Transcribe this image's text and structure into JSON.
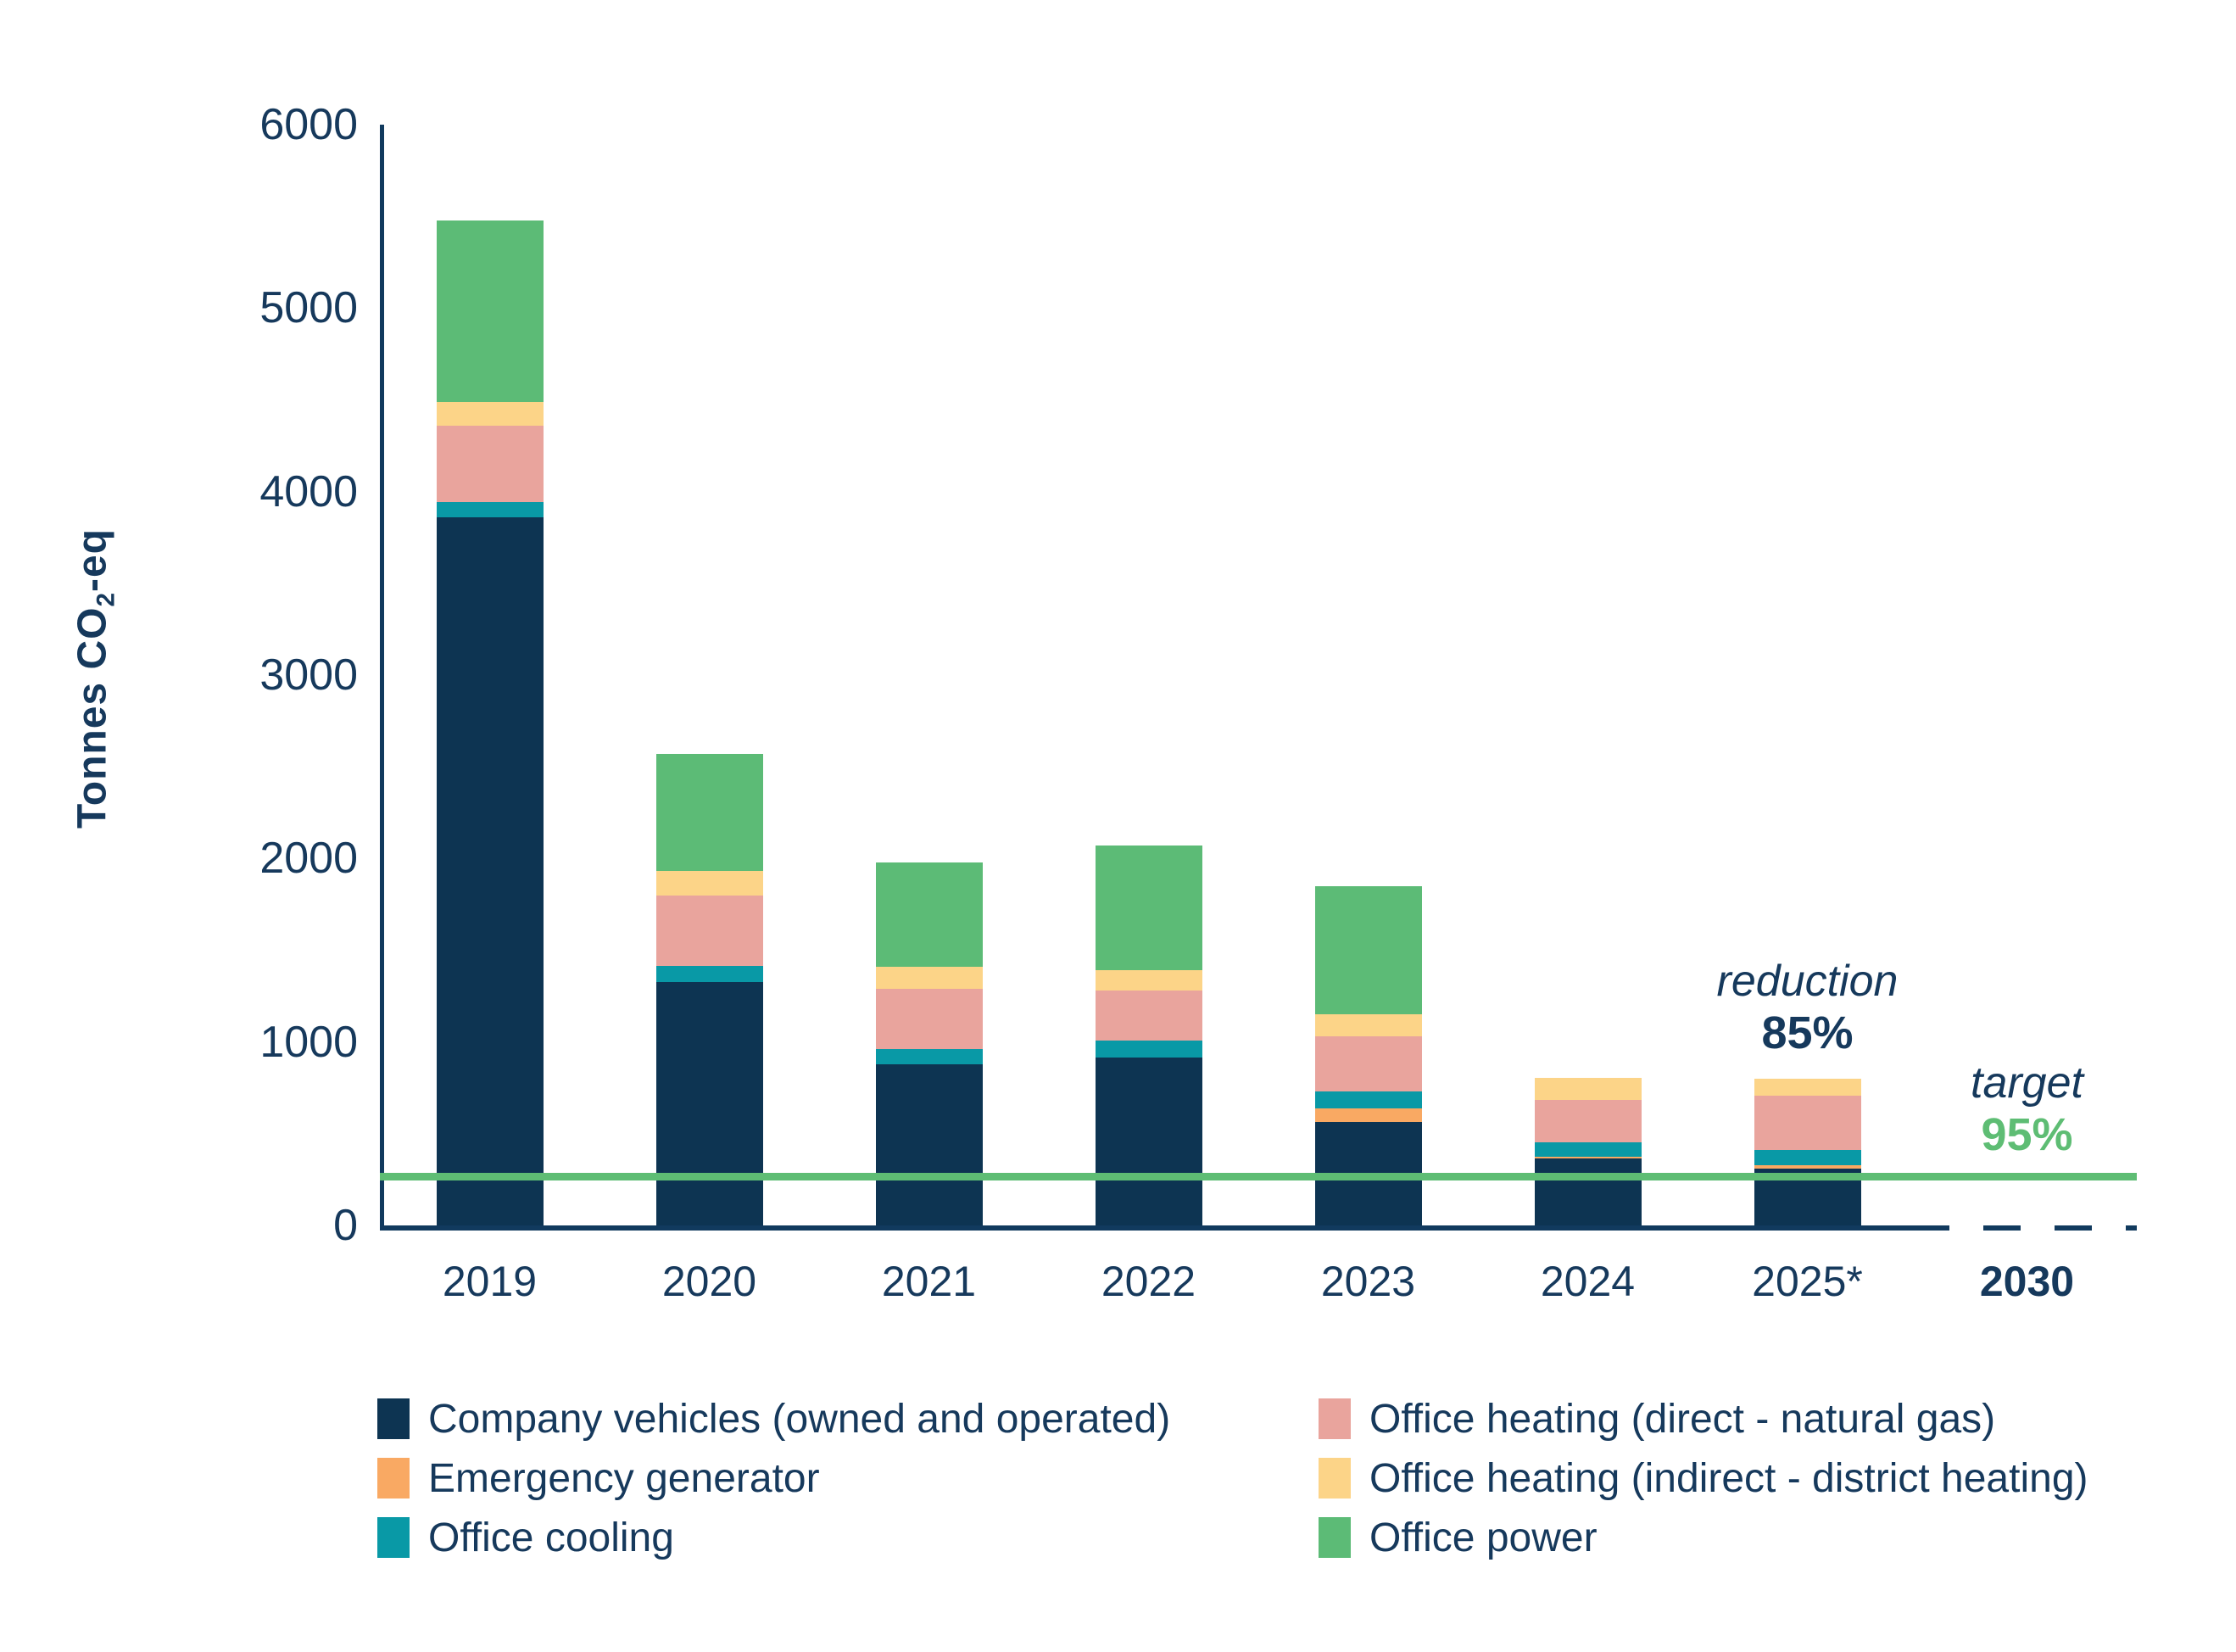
{
  "page": {
    "background": "#ffffff",
    "text_color": "#16395c"
  },
  "chart_data": {
    "type": "bar",
    "stacked": true,
    "title": "",
    "ylabel": "Tonnes CO₂-eq",
    "ylabel_parts": {
      "main": "Tonnes CO",
      "sub": "2",
      "tail": "-eq"
    },
    "xlabel": "",
    "ylim": [
      0,
      6000
    ],
    "yticks": [
      6000,
      5000,
      4000,
      3000,
      2000,
      1000,
      0
    ],
    "grid": false,
    "legend_position": "bottom",
    "categories": [
      "2019",
      "2020",
      "2021",
      "2022",
      "2023",
      "2024",
      "2025*",
      "2030"
    ],
    "bar_category_count": 7,
    "emphasized_category": "2030",
    "series": [
      {
        "name": "Company vehicles (owned and operated)",
        "color": "#0d3452",
        "values": [
          3860,
          1325,
          880,
          915,
          565,
          365,
          310
        ]
      },
      {
        "name": "Emergency generator",
        "color": "#f9a963",
        "values": [
          0,
          0,
          0,
          0,
          75,
          10,
          20
        ]
      },
      {
        "name": "Office cooling",
        "color": "#0999a6",
        "values": [
          85,
          90,
          80,
          95,
          90,
          80,
          80
        ]
      },
      {
        "name": "Office heating (direct - natural gas)",
        "color": "#e9a49d",
        "values": [
          415,
          385,
          330,
          270,
          300,
          230,
          295
        ]
      },
      {
        "name": "Office heating (indirect - district heating)",
        "color": "#fcd488",
        "values": [
          130,
          130,
          120,
          110,
          120,
          120,
          95
        ]
      },
      {
        "name": "Office power",
        "color": "#5cbb76",
        "values": [
          990,
          640,
          570,
          680,
          700,
          0,
          0
        ]
      }
    ],
    "totals": [
      5480,
      2570,
      1980,
      2070,
      1850,
      805,
      800
    ],
    "target_line": {
      "value": 270,
      "color": "#5ebd74",
      "label": "target",
      "pct_label": "95%"
    },
    "reduction_annotation": {
      "label": "reduction",
      "pct_label": "85%"
    },
    "axis_color": "#113a5e",
    "dashed_future_axis": {
      "from_category": "2025*",
      "to_category": "2030"
    }
  },
  "legend": {
    "columns": [
      [
        0,
        1,
        2
      ],
      [
        3,
        4,
        5
      ]
    ]
  }
}
